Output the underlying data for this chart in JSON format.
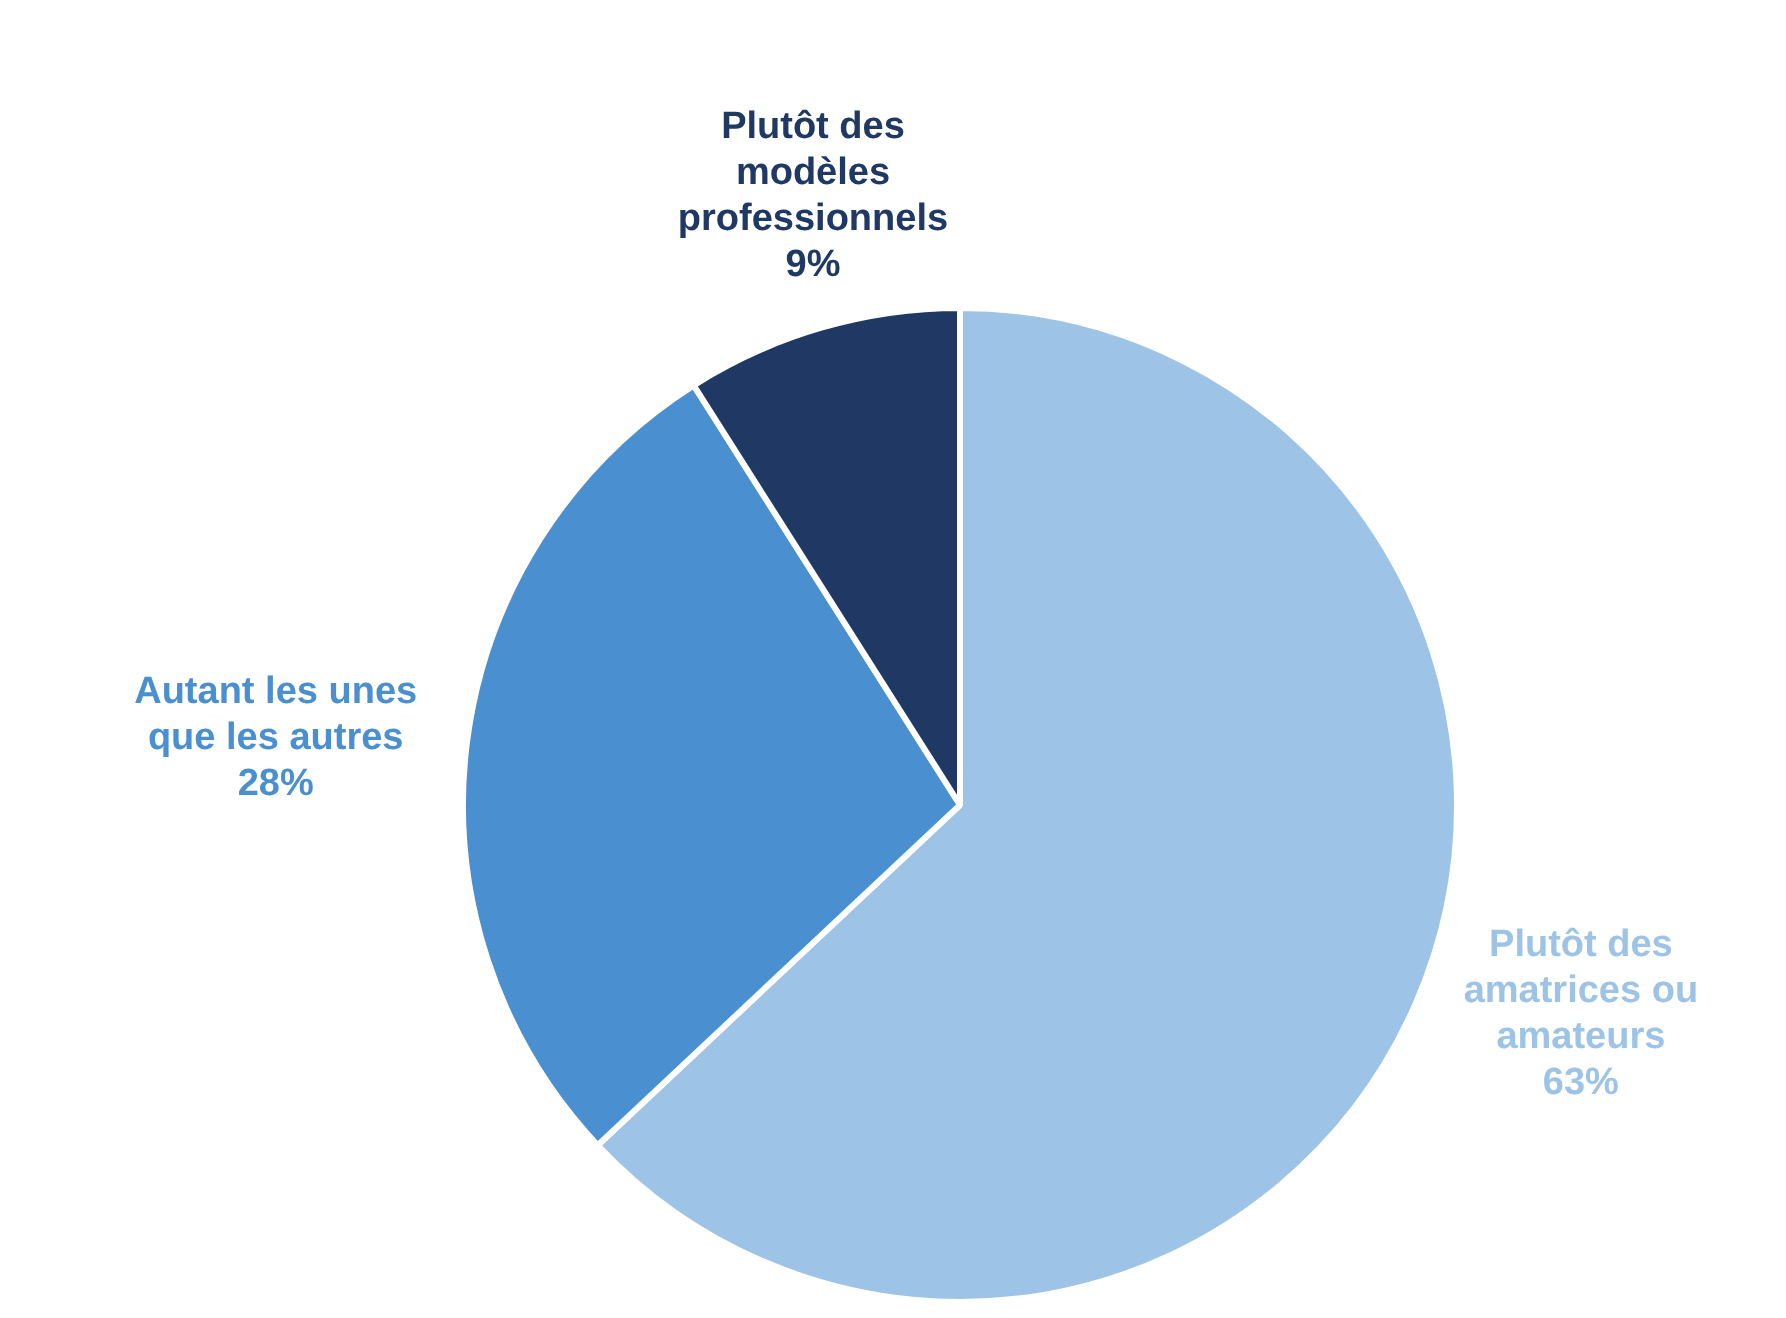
{
  "chart_data": {
    "type": "pie",
    "categories": [
      "Plutôt des amatrices ou amateurs",
      "Autant les unes que les autres",
      "Plutôt des modèles professionnels"
    ],
    "values": [
      63,
      28,
      9
    ],
    "colors": [
      "#9dc3e6",
      "#4a8fd0",
      "#1f3864"
    ],
    "value_labels": [
      "63%",
      "28%",
      "9%"
    ],
    "legend": false
  }
}
